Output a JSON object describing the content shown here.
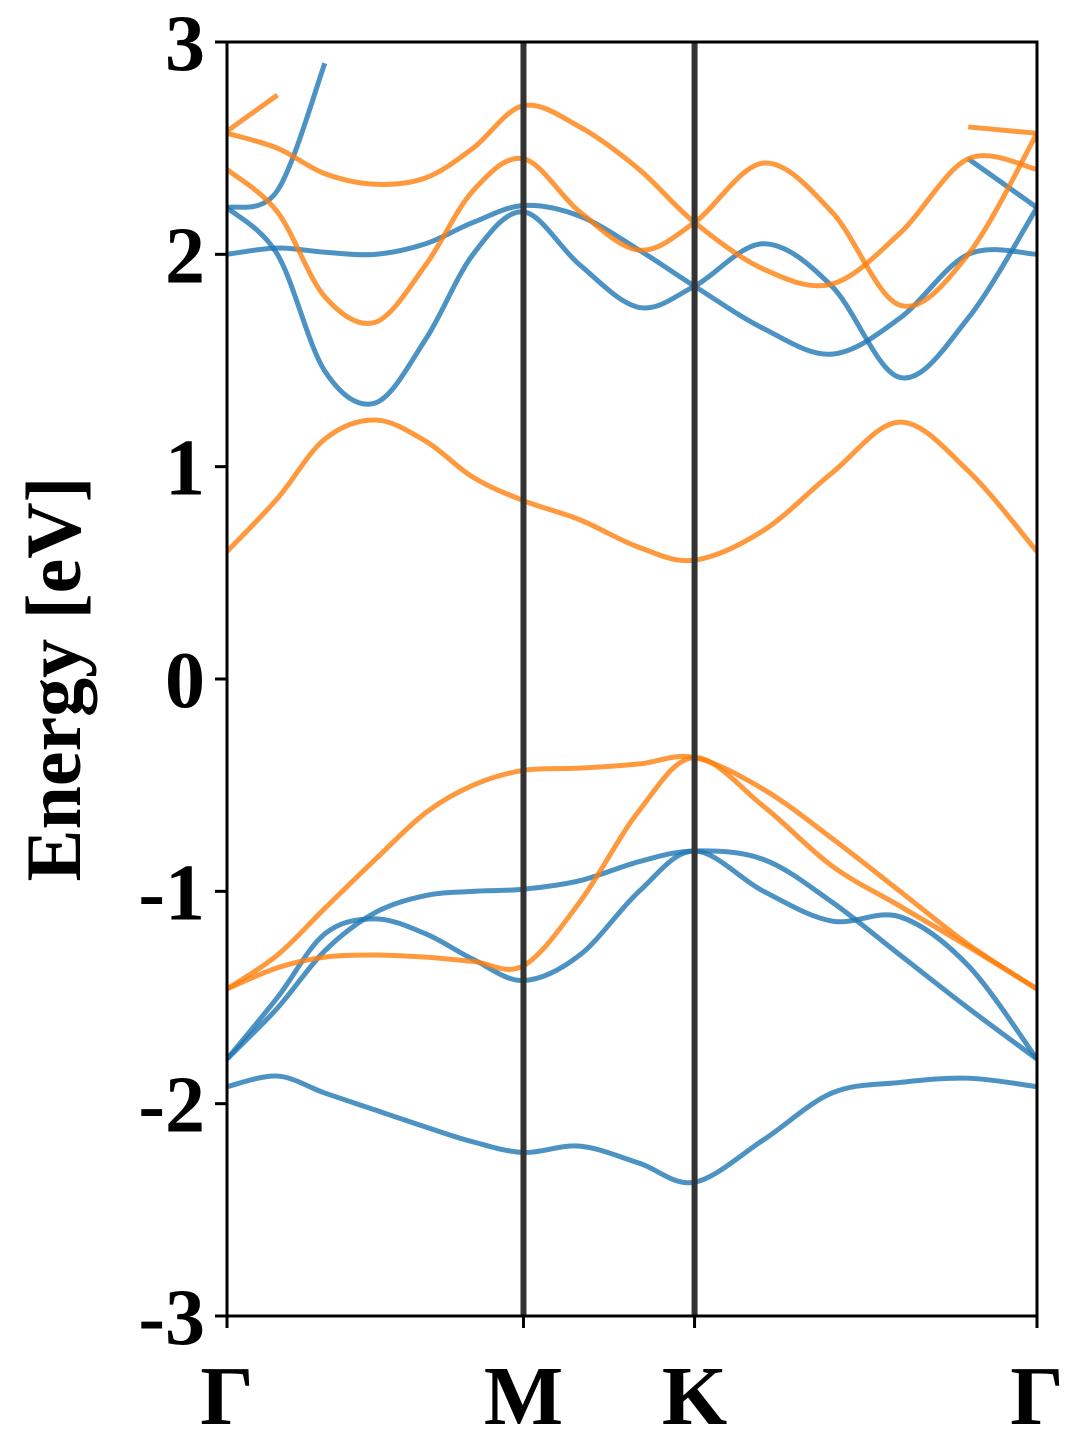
{
  "chart_data": {
    "type": "line",
    "ylabel": "Energy [eV]",
    "x": [
      0,
      0.17,
      0.33,
      0.5,
      0.67,
      0.83,
      1.0,
      1.19,
      1.39,
      1.577,
      1.81,
      2.04,
      2.27,
      2.5,
      2.732
    ],
    "xlim": [
      0,
      2.732
    ],
    "xticks": [
      {
        "value": 0,
        "label": "Γ"
      },
      {
        "value": 1.0,
        "label": "M"
      },
      {
        "value": 1.577,
        "label": "K"
      },
      {
        "value": 2.732,
        "label": "Γ"
      }
    ],
    "ylim": [
      -3,
      3
    ],
    "yticks": [
      -3,
      -2,
      -1,
      0,
      1,
      2,
      3
    ],
    "series": [
      {
        "color": "#1f77b4",
        "values": [
          -1.92,
          -1.87,
          -1.95,
          -2.03,
          -2.11,
          -2.18,
          -2.23,
          -2.2,
          -2.28,
          -2.37,
          -2.17,
          -1.95,
          -1.9,
          -1.88,
          -1.92
        ]
      },
      {
        "color": "#1f77b4",
        "values": [
          -1.79,
          -1.5,
          -1.2,
          -1.13,
          -1.2,
          -1.32,
          -1.42,
          -1.3,
          -1.0,
          -0.81,
          -1.0,
          -1.14,
          -1.12,
          -1.35,
          -1.79
        ]
      },
      {
        "color": "#1f77b4",
        "values": [
          -1.79,
          -1.55,
          -1.28,
          -1.1,
          -1.02,
          -1.0,
          -0.99,
          -0.95,
          -0.86,
          -0.81,
          -0.85,
          -1.05,
          -1.3,
          -1.55,
          -1.79
        ]
      },
      {
        "color": "#ff7f0e",
        "values": [
          -1.46,
          -1.3,
          -1.08,
          -0.85,
          -0.63,
          -0.5,
          -0.43,
          -0.42,
          -0.4,
          -0.37,
          -0.52,
          -0.75,
          -1.0,
          -1.25,
          -1.46
        ]
      },
      {
        "color": "#ff7f0e",
        "values": [
          -1.46,
          -1.36,
          -1.31,
          -1.3,
          -1.31,
          -1.33,
          -1.35,
          -1.05,
          -0.62,
          -0.37,
          -0.6,
          -0.88,
          -1.07,
          -1.26,
          -1.46
        ]
      },
      {
        "color": "#ff7f0e",
        "values": [
          0.6,
          0.85,
          1.13,
          1.22,
          1.12,
          0.95,
          0.84,
          0.75,
          0.62,
          0.56,
          0.7,
          0.97,
          1.21,
          0.98,
          0.6
        ]
      },
      {
        "color": "#1f77b4",
        "values": [
          2.22,
          2.0,
          1.45,
          1.3,
          1.6,
          2.0,
          2.2,
          1.95,
          1.75,
          1.85,
          2.05,
          1.85,
          1.42,
          1.7,
          2.22
        ]
      },
      {
        "color": "#1f77b4",
        "values": [
          2.0,
          2.03,
          2.01,
          2.0,
          2.05,
          2.15,
          2.23,
          2.18,
          2.02,
          1.85,
          1.65,
          1.53,
          1.7,
          2.0,
          2.0
        ]
      },
      {
        "color": "#1f77b4",
        "values": [
          2.22,
          2.3,
          2.9,
          null,
          null,
          null,
          null,
          null,
          null,
          null,
          null,
          null,
          null,
          2.45,
          2.22
        ]
      },
      {
        "color": "#ff7f0e",
        "values": [
          2.4,
          2.2,
          1.8,
          1.68,
          1.95,
          2.3,
          2.45,
          2.2,
          2.02,
          2.15,
          2.43,
          2.2,
          1.76,
          2.0,
          2.57
        ]
      },
      {
        "color": "#ff7f0e",
        "values": [
          2.57,
          2.5,
          2.38,
          2.33,
          2.36,
          2.5,
          2.7,
          2.6,
          2.4,
          2.15,
          1.93,
          1.86,
          2.1,
          2.45,
          2.4
        ]
      },
      {
        "color": "#ff7f0e",
        "values": [
          2.58,
          2.75,
          null,
          null,
          null,
          null,
          null,
          null,
          null,
          null,
          null,
          null,
          null,
          2.6,
          2.57
        ]
      }
    ]
  }
}
